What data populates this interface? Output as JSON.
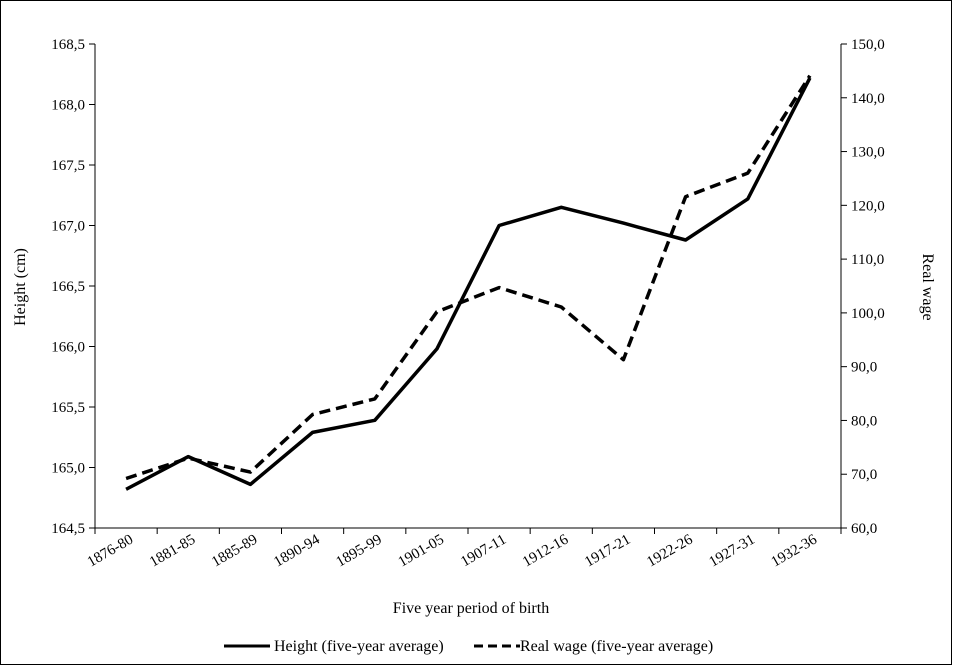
{
  "chart_data": {
    "type": "line",
    "xlabel": "Five year period of birth",
    "ylabel": "Height (cm)",
    "y2label": "Real wage",
    "categories": [
      "1876-80",
      "1881-85",
      "1885-89",
      "1890-94",
      "1895-99",
      "1901-05",
      "1907-11",
      "1912-16",
      "1917-21",
      "1922-26",
      "1927-31",
      "1932-36"
    ],
    "yticks": [
      "164,5",
      "165,0",
      "165,5",
      "166,0",
      "166,5",
      "167,0",
      "167,5",
      "168,0",
      "168,5"
    ],
    "y2ticks": [
      "60,0",
      "70,0",
      "80,0",
      "90,0",
      "100,0",
      "110,0",
      "120,0",
      "130,0",
      "140,0",
      "150,0"
    ],
    "ylim": [
      164.5,
      168.5
    ],
    "y2lim": [
      60,
      150
    ],
    "series": [
      {
        "name": "Height (five-year average)",
        "axis": "left",
        "style": "solid",
        "values": [
          164.82,
          165.09,
          164.86,
          165.29,
          165.39,
          165.98,
          167.0,
          167.15,
          167.02,
          166.88,
          167.22,
          168.22
        ]
      },
      {
        "name": "Real wage (five-year average)",
        "axis": "right",
        "style": "dashed",
        "values": [
          69.2,
          73.0,
          70.4,
          81.1,
          84.0,
          100.2,
          104.7,
          101.1,
          91.3,
          121.6,
          126.0,
          144.1
        ]
      }
    ],
    "legend": "bottom",
    "grid": false
  }
}
